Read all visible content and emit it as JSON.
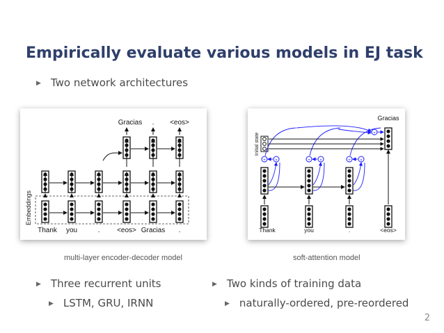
{
  "slide": {
    "title": "Empirically evaluate various models in EJ task",
    "bullet1": "Two network architectures",
    "bullet2": "Three recurrent units",
    "sub2": "LSTM, GRU, IRNN",
    "bullet3": "Two kinds of training data",
    "sub3": "naturally-ordered, pre-reordered",
    "page": "2"
  },
  "diagram1": {
    "caption": "multi-layer encoder-decoder model",
    "side_label": "Embeddings",
    "outputs": [
      "Gracias",
      ".",
      "<eos>"
    ],
    "inputs": [
      "Thank",
      "you",
      ".",
      "<eos>",
      "Gracias",
      "."
    ]
  },
  "diagram2": {
    "caption": "soft-attention model",
    "side_label": "Initial state",
    "output": "Gracias",
    "inputs": [
      "Thank",
      "you",
      ".",
      "<eos>"
    ],
    "node_symbols": [
      "+",
      "×"
    ]
  }
}
